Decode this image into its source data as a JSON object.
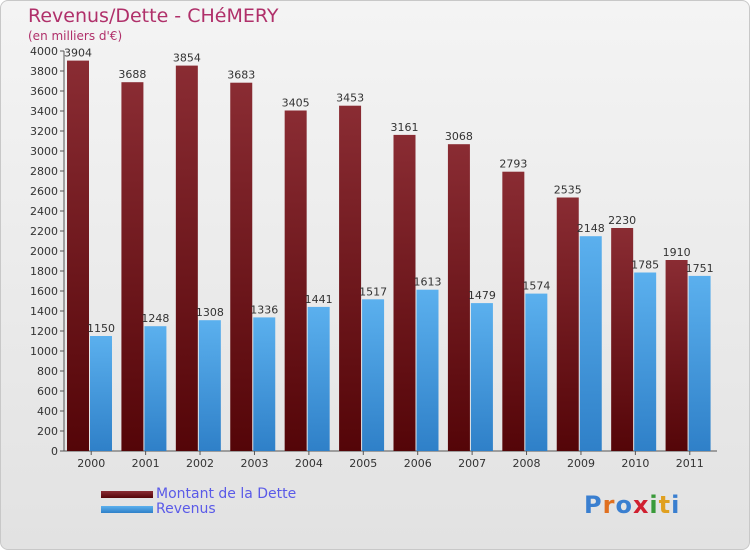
{
  "title": "Revenus/Dette - CHéMERY",
  "subtitle": "(en milliers d'€)",
  "brand": "Proxiti",
  "chart_data": {
    "type": "bar",
    "categories": [
      "2000",
      "2001",
      "2002",
      "2003",
      "2004",
      "2005",
      "2006",
      "2007",
      "2008",
      "2009",
      "2010",
      "2011"
    ],
    "series": [
      {
        "name": "Montant de la Dette",
        "color": "#7a1a22",
        "values": [
          3904,
          3688,
          3854,
          3683,
          3405,
          3453,
          3161,
          3068,
          2793,
          2535,
          2230,
          1910
        ]
      },
      {
        "name": "Revenus",
        "color": "#4ea6e8",
        "values": [
          1150,
          1248,
          1308,
          1336,
          1441,
          1517,
          1613,
          1479,
          1574,
          2148,
          1785,
          1751
        ]
      }
    ],
    "ylim": [
      0,
      4000
    ],
    "yticks": [
      0,
      200,
      400,
      600,
      800,
      1000,
      1200,
      1400,
      1600,
      1800,
      2000,
      2200,
      2400,
      2600,
      2800,
      3000,
      3200,
      3400,
      3600,
      3800,
      4000
    ],
    "grid": false,
    "legend_position": "bottom-left"
  }
}
